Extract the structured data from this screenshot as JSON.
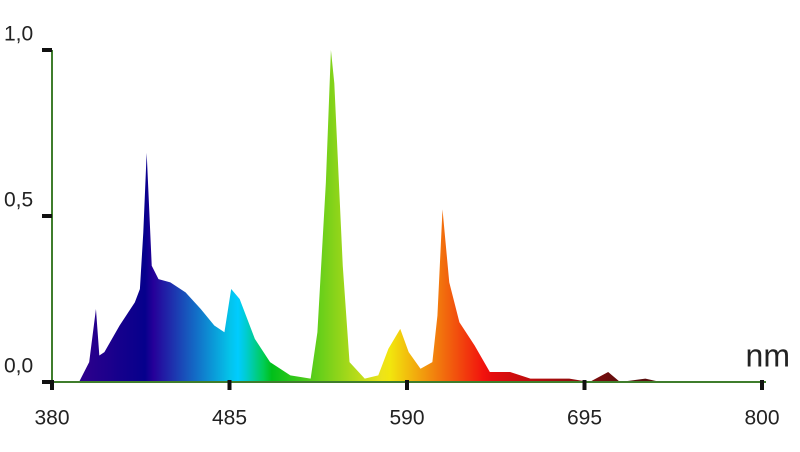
{
  "chart_data": {
    "type": "area",
    "x_label": "nm",
    "color_scale": "wavelength",
    "x": [
      396,
      402,
      406,
      408,
      411,
      420,
      429,
      432,
      434,
      436,
      439,
      443,
      450,
      459,
      468,
      476,
      482,
      486,
      491,
      500,
      509,
      521,
      533,
      537,
      542,
      545,
      547,
      552,
      556,
      565,
      573,
      579,
      586,
      591,
      598,
      605,
      608,
      611,
      615,
      621,
      630,
      639,
      651,
      663,
      686,
      698,
      709,
      716,
      731,
      740,
      799
    ],
    "values": [
      0,
      0.06,
      0.22,
      0.08,
      0.09,
      0.17,
      0.24,
      0.28,
      0.45,
      0.69,
      0.35,
      0.31,
      0.3,
      0.27,
      0.22,
      0.17,
      0.15,
      0.28,
      0.25,
      0.13,
      0.06,
      0.02,
      0.01,
      0.15,
      0.6,
      1.0,
      0.9,
      0.35,
      0.06,
      0.01,
      0.02,
      0.1,
      0.16,
      0.09,
      0.04,
      0.06,
      0.2,
      0.52,
      0.3,
      0.18,
      0.11,
      0.03,
      0.03,
      0.01,
      0.01,
      0,
      0.03,
      0,
      0.01,
      0,
      0
    ],
    "xlim": [
      380,
      800
    ],
    "ylim": [
      0,
      1
    ],
    "xticks": [
      380,
      485,
      590,
      695,
      800
    ],
    "yticks": [
      {
        "value": 0,
        "label": "0,0"
      },
      {
        "value": 0.5,
        "label": "0,5"
      },
      {
        "value": 1,
        "label": "1,0"
      }
    ],
    "axis_color": "#3f7d2c"
  }
}
